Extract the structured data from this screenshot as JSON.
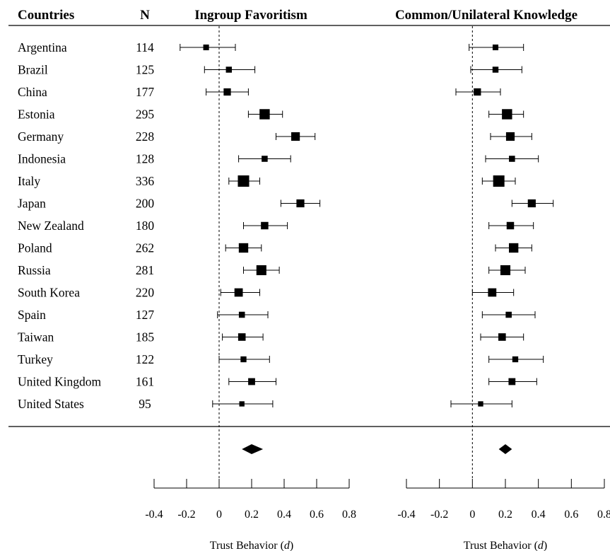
{
  "headers": {
    "countries": "Countries",
    "n": "N",
    "panel_left": "Ingroup Favoritism",
    "panel_right": "Common/Unilateral Knowledge"
  },
  "axis_label_text": "Trust Behavior (",
  "axis_label_symbol": "d",
  "axis_label_close": ")",
  "countries": [
    "Argentina",
    "Brazil",
    "China",
    "Estonia",
    "Germany",
    "Indonesia",
    "Italy",
    "Japan",
    "New Zealand",
    "Poland",
    "Russia",
    "South Korea",
    "Spain",
    "Taiwan",
    "Turkey",
    "United Kingdom",
    "United States"
  ],
  "n": [
    114,
    125,
    177,
    295,
    228,
    128,
    336,
    200,
    180,
    262,
    281,
    220,
    127,
    185,
    122,
    161,
    95
  ],
  "chart_data": [
    {
      "type": "forest",
      "title": "Ingroup Favoritism",
      "xlabel": "Trust Behavior (d)",
      "xlim": [
        -0.4,
        0.8
      ],
      "ticks": [
        "-0.4",
        "-0.2",
        "0",
        "0.2",
        "0.4",
        "0.6",
        "0.8"
      ],
      "reference_line": 0,
      "estimates": [
        -0.08,
        0.06,
        0.05,
        0.28,
        0.47,
        0.28,
        0.15,
        0.5,
        0.28,
        0.15,
        0.26,
        0.12,
        0.14,
        0.14,
        0.15,
        0.2,
        0.14
      ],
      "ci_lower": [
        -0.24,
        -0.09,
        -0.08,
        0.18,
        0.35,
        0.12,
        0.06,
        0.38,
        0.15,
        0.04,
        0.15,
        0.01,
        -0.01,
        0.02,
        0.0,
        0.06,
        -0.04
      ],
      "ci_upper": [
        0.1,
        0.22,
        0.18,
        0.39,
        0.59,
        0.44,
        0.25,
        0.62,
        0.42,
        0.26,
        0.37,
        0.25,
        0.3,
        0.27,
        0.31,
        0.35,
        0.33
      ],
      "weights": [
        0.34,
        0.37,
        0.52,
        0.87,
        0.68,
        0.38,
        1.0,
        0.6,
        0.54,
        0.78,
        0.84,
        0.65,
        0.38,
        0.55,
        0.36,
        0.48,
        0.28
      ],
      "pooled": 0.2,
      "pooled_ci": [
        0.14,
        0.27
      ]
    },
    {
      "type": "forest",
      "title": "Common/Unilateral Knowledge",
      "xlabel": "Trust Behavior (d)",
      "xlim": [
        -0.4,
        0.8
      ],
      "ticks": [
        "-0.4",
        "-0.2",
        "0",
        "0.2",
        "0.4",
        "0.6",
        "0.8"
      ],
      "reference_line": 0,
      "estimates": [
        0.14,
        0.14,
        0.03,
        0.21,
        0.23,
        0.24,
        0.16,
        0.36,
        0.23,
        0.25,
        0.2,
        0.12,
        0.22,
        0.18,
        0.26,
        0.24,
        0.05
      ],
      "ci_lower": [
        -0.02,
        -0.01,
        -0.1,
        0.1,
        0.11,
        0.08,
        0.06,
        0.24,
        0.1,
        0.14,
        0.1,
        0.0,
        0.06,
        0.05,
        0.1,
        0.1,
        -0.13
      ],
      "ci_upper": [
        0.31,
        0.3,
        0.17,
        0.31,
        0.36,
        0.4,
        0.26,
        0.49,
        0.37,
        0.36,
        0.32,
        0.25,
        0.38,
        0.31,
        0.43,
        0.39,
        0.24
      ],
      "weights": [
        0.34,
        0.37,
        0.52,
        0.87,
        0.68,
        0.38,
        1.0,
        0.6,
        0.54,
        0.78,
        0.84,
        0.65,
        0.38,
        0.55,
        0.36,
        0.48,
        0.28
      ],
      "pooled": 0.2,
      "pooled_ci": [
        0.16,
        0.24
      ]
    }
  ]
}
